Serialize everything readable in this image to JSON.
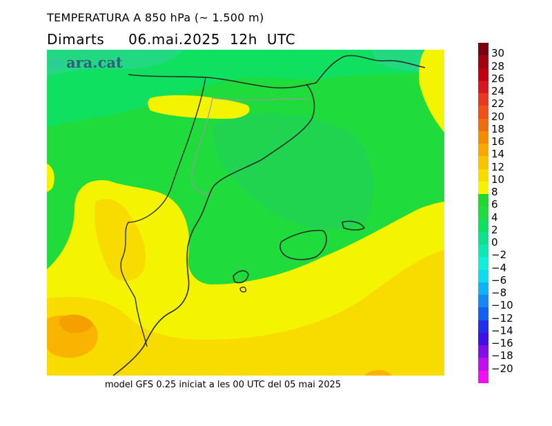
{
  "title": "TEMPERATURA A 850 hPa (~ 1.500 m)",
  "subtitle": "Dimarts     06.mai.2025  12h  UTC",
  "footer": "model GFS 0.25 iniciat a les 00 UTC del 05 mai 2025",
  "logo": "ara.cat",
  "colors": {
    "land_outline": "#2b2b2b",
    "border_outline": "#999999",
    "field_green_dark": "#1fdc3c",
    "field_green_light": "#10e060",
    "field_teal": "#22d880",
    "field_yellow": "#f4f400",
    "field_gold": "#f8dc00",
    "field_orange": "#f8b400"
  },
  "legend": {
    "type": "colorbar",
    "bins": [
      {
        "label": "30",
        "color": "#7a0014"
      },
      {
        "label": "28",
        "color": "#a00010"
      },
      {
        "label": "26",
        "color": "#c00010"
      },
      {
        "label": "24",
        "color": "#d81820"
      },
      {
        "label": "22",
        "color": "#e83820"
      },
      {
        "label": "20",
        "color": "#f05018"
      },
      {
        "label": "18",
        "color": "#f06c10"
      },
      {
        "label": "16",
        "color": "#f48c00"
      },
      {
        "label": "14",
        "color": "#f8a800"
      },
      {
        "label": "12",
        "color": "#f8c400"
      },
      {
        "label": "10",
        "color": "#f8dc00"
      },
      {
        "label": "8",
        "color": "#f4f400"
      },
      {
        "label": "6",
        "color": "#1ed82e"
      },
      {
        "label": "4",
        "color": "#20dc40"
      },
      {
        "label": "2",
        "color": "#10e060"
      },
      {
        "label": "0",
        "color": "#10e08c"
      },
      {
        "label": "−2",
        "color": "#10e8b4"
      },
      {
        "label": "−4",
        "color": "#10f0d8"
      },
      {
        "label": "−6",
        "color": "#10dcf0"
      },
      {
        "label": "−8",
        "color": "#10b4f4"
      },
      {
        "label": "−10",
        "color": "#1488f4"
      },
      {
        "label": "−12",
        "color": "#1460f0"
      },
      {
        "label": "−14",
        "color": "#2030e8"
      },
      {
        "label": "−16",
        "color": "#4010e8"
      },
      {
        "label": "−18",
        "color": "#8010e8"
      },
      {
        "label": "−20",
        "color": "#c010f0"
      },
      {
        "label": "",
        "color": "#f010f0"
      }
    ]
  }
}
